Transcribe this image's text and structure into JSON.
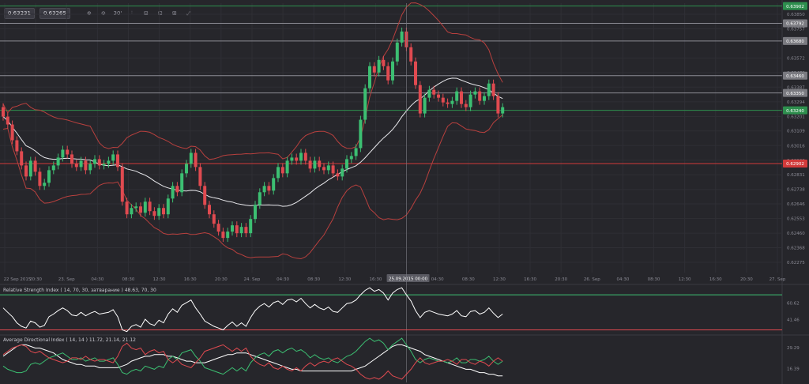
{
  "toolbar": {
    "bid": "0.63231",
    "ask": "0.63265",
    "tools": [
      {
        "icon": "zoom-in-icon",
        "glyph": "⊕"
      },
      {
        "icon": "zoom-out-icon",
        "glyph": "⊖"
      },
      {
        "icon": "timeframe-icon",
        "glyph": "30'"
      },
      {
        "icon": "indicators-icon",
        "glyph": "⫶"
      },
      {
        "icon": "drawing-tools-icon",
        "glyph": "⊟"
      },
      {
        "icon": "snapshot-icon",
        "glyph": "⊡"
      },
      {
        "icon": "settings-icon",
        "glyph": "⊞"
      },
      {
        "icon": "fullscreen-icon",
        "glyph": "⤢"
      }
    ]
  },
  "colors": {
    "up": "#3cbf72",
    "down": "#e04a50",
    "background": "#26262b",
    "grid": "#2f2f35",
    "level_line": "#8c8c94",
    "bollinger": "#b8403e",
    "sma": "#e8e8ec"
  },
  "chart_data": [
    {
      "type": "candlestick",
      "title": "",
      "timeframe": "30 min",
      "price_axis_ticks": [
        "0.63850",
        "0.63757",
        "0.63572",
        "0.63479",
        "0.63387",
        "0.63294",
        "0.63201",
        "0.63109",
        "0.63016",
        "0.62923",
        "0.62831",
        "0.62738",
        "0.62646",
        "0.62553",
        "0.62460",
        "0.62368",
        "0.62275"
      ],
      "price_range": [
        0.6221,
        0.6392
      ],
      "horizontal_levels": [
        {
          "price": "0.63902",
          "color": "#2e8f4e"
        },
        {
          "price": "0.63792",
          "color": "#7a7a80"
        },
        {
          "price": "0.63680",
          "color": "#7a7a80"
        },
        {
          "price": "0.63460",
          "color": "#7a7a80"
        },
        {
          "price": "0.63350",
          "color": "#7a7a80"
        },
        {
          "price": "0.63240",
          "color": "#2e8f4e"
        },
        {
          "price": "0.62902",
          "color": "#d23a3a"
        }
      ],
      "time_axis_ticks": [
        "22 Sep 2015",
        "20:30",
        "23. Sep",
        "04:30",
        "08:30",
        "12:30",
        "16:30",
        "20:30",
        "24. Sep",
        "04:30",
        "08:30",
        "12:30",
        "16:30",
        "25.09.2015 00:00",
        "04:30",
        "08:30",
        "12:30",
        "16:30",
        "20:30",
        "26. Sep",
        "04:30",
        "08:30",
        "12:30",
        "16:30",
        "20:30",
        "27. Sep"
      ],
      "crosshair_label": "25.09.2015 00:00",
      "closes": [
        0.632,
        0.6315,
        0.6305,
        0.6298,
        0.6289,
        0.6282,
        0.6292,
        0.6285,
        0.6276,
        0.6278,
        0.6286,
        0.6289,
        0.6294,
        0.6299,
        0.6296,
        0.629,
        0.6288,
        0.6292,
        0.6286,
        0.629,
        0.6293,
        0.6289,
        0.629,
        0.6292,
        0.6296,
        0.6288,
        0.6266,
        0.6258,
        0.6262,
        0.6263,
        0.6259,
        0.6266,
        0.626,
        0.6257,
        0.6262,
        0.6258,
        0.6268,
        0.6276,
        0.6272,
        0.6284,
        0.629,
        0.6297,
        0.6288,
        0.6276,
        0.6264,
        0.6258,
        0.6252,
        0.6247,
        0.6243,
        0.6247,
        0.6251,
        0.6246,
        0.625,
        0.6246,
        0.6255,
        0.6264,
        0.6272,
        0.6276,
        0.6273,
        0.6281,
        0.6288,
        0.6284,
        0.6292,
        0.6294,
        0.6292,
        0.6297,
        0.6292,
        0.6287,
        0.6292,
        0.6288,
        0.6286,
        0.6289,
        0.6284,
        0.6282,
        0.6287,
        0.6293,
        0.6295,
        0.63,
        0.6318,
        0.6338,
        0.6352,
        0.6348,
        0.6356,
        0.6352,
        0.6343,
        0.6355,
        0.6367,
        0.6374,
        0.6364,
        0.6355,
        0.634,
        0.6322,
        0.6332,
        0.6337,
        0.6334,
        0.6332,
        0.6329,
        0.6328,
        0.633,
        0.6336,
        0.6328,
        0.6326,
        0.6334,
        0.6336,
        0.633,
        0.6333,
        0.6341,
        0.6333,
        0.6322,
        0.6326
      ],
      "overlays": [
        "Bollinger Bands",
        "SMA"
      ]
    },
    {
      "type": "line",
      "title": "Relative Strength Index ( 14, 70, 30, затварание ) 48.63, 70, 30",
      "y_ticks": [
        "60.62",
        "41.46"
      ],
      "levels": [
        70,
        30
      ],
      "ylim": [
        25,
        80
      ],
      "series": [
        {
          "values": [
            55,
            50,
            45,
            38,
            34,
            32,
            40,
            38,
            33,
            35,
            45,
            48,
            52,
            55,
            52,
            47,
            46,
            50,
            46,
            49,
            51,
            48,
            49,
            50,
            53,
            45,
            30,
            28,
            34,
            36,
            33,
            42,
            37,
            35,
            41,
            38,
            48,
            54,
            50,
            58,
            61,
            64,
            55,
            48,
            40,
            37,
            34,
            32,
            30,
            35,
            39,
            34,
            38,
            34,
            44,
            52,
            57,
            60,
            56,
            61,
            63,
            59,
            64,
            65,
            62,
            66,
            60,
            55,
            59,
            55,
            53,
            56,
            51,
            50,
            55,
            60,
            61,
            64,
            70,
            75,
            78,
            74,
            76,
            72,
            64,
            72,
            76,
            78,
            70,
            63,
            52,
            44,
            50,
            52,
            50,
            48,
            47,
            46,
            48,
            52,
            46,
            45,
            51,
            52,
            48,
            50,
            55,
            49,
            44,
            48
          ]
        }
      ]
    },
    {
      "type": "line",
      "title": "Average Directional Index ( 14, 14 ) 11.72, 21.14, 21.12",
      "y_ticks": [
        "29.29",
        "16.39"
      ],
      "ylim": [
        8,
        36
      ],
      "series": [
        {
          "values": [
            24,
            26,
            28,
            30,
            31,
            31,
            30,
            29,
            29,
            28,
            27,
            26,
            24,
            22,
            21,
            20,
            19,
            19,
            18,
            18,
            18,
            17,
            17,
            17,
            17,
            17,
            18,
            19,
            21,
            22,
            23,
            24,
            24,
            25,
            25,
            25,
            24,
            24,
            23,
            22,
            21,
            21,
            20,
            20,
            20,
            21,
            22,
            23,
            24,
            25,
            25,
            26,
            26,
            26,
            25,
            24,
            23,
            22,
            21,
            20,
            19,
            18,
            17,
            16,
            16,
            15,
            15,
            15,
            15,
            15,
            15,
            15,
            15,
            15,
            15,
            15,
            15,
            16,
            17,
            18,
            20,
            22,
            24,
            26,
            28,
            30,
            31,
            31,
            30,
            29,
            28,
            27,
            25,
            24,
            23,
            22,
            21,
            20,
            19,
            18,
            17,
            16,
            16,
            15,
            14,
            14,
            13,
            13,
            12,
            12
          ]
        },
        {
          "values": [
            18,
            16,
            15,
            14,
            14,
            15,
            19,
            20,
            19,
            21,
            23,
            24,
            25,
            26,
            24,
            22,
            22,
            23,
            21,
            22,
            23,
            21,
            21,
            22,
            23,
            19,
            14,
            13,
            15,
            16,
            15,
            18,
            17,
            16,
            18,
            17,
            22,
            24,
            22,
            26,
            27,
            28,
            24,
            21,
            17,
            16,
            15,
            14,
            13,
            15,
            17,
            15,
            17,
            15,
            20,
            23,
            25,
            26,
            24,
            27,
            28,
            26,
            28,
            29,
            27,
            28,
            26,
            23,
            25,
            23,
            22,
            23,
            21,
            20,
            22,
            24,
            25,
            27,
            30,
            33,
            35,
            33,
            34,
            32,
            28,
            31,
            33,
            35,
            31,
            27,
            22,
            20,
            22,
            23,
            22,
            21,
            21,
            20,
            21,
            23,
            20,
            20,
            22,
            22,
            21,
            22,
            24,
            21,
            19,
            21
          ]
        },
        {
          "values": [
            25,
            27,
            29,
            30,
            31,
            30,
            27,
            26,
            27,
            25,
            23,
            22,
            21,
            20,
            21,
            23,
            23,
            22,
            24,
            22,
            21,
            22,
            22,
            21,
            20,
            24,
            30,
            32,
            29,
            28,
            29,
            25,
            27,
            28,
            26,
            27,
            22,
            20,
            22,
            19,
            18,
            17,
            20,
            23,
            27,
            28,
            29,
            30,
            31,
            29,
            27,
            29,
            27,
            29,
            24,
            21,
            19,
            18,
            20,
            17,
            16,
            18,
            16,
            15,
            17,
            15,
            18,
            20,
            18,
            20,
            21,
            20,
            22,
            23,
            21,
            19,
            18,
            16,
            13,
            11,
            10,
            11,
            10,
            12,
            15,
            12,
            11,
            10,
            13,
            16,
            20,
            23,
            20,
            19,
            20,
            21,
            21,
            22,
            21,
            19,
            22,
            22,
            20,
            19,
            21,
            20,
            18,
            21,
            23,
            21
          ]
        }
      ]
    }
  ]
}
